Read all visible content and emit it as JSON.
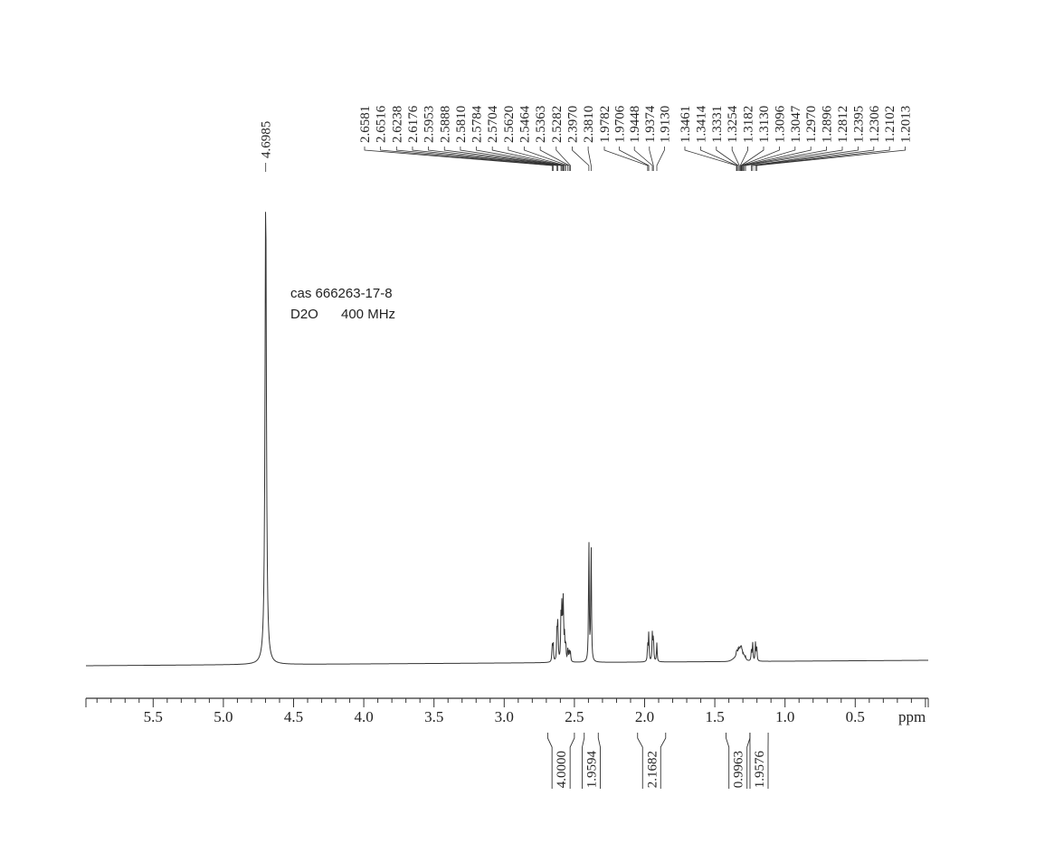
{
  "sample_info": {
    "line1": "cas 666263-17-8",
    "line2_solvent": "D2O",
    "line2_freq": "400 MHz"
  },
  "chart_data": {
    "type": "line",
    "title": "",
    "xlabel": "ppm",
    "ylabel": "",
    "xlim": [
      6.0,
      -0.02
    ],
    "x_reversed": true,
    "x_ticks": [
      5.5,
      5.0,
      4.5,
      4.0,
      3.5,
      3.0,
      2.5,
      2.0,
      1.5,
      1.0,
      0.5
    ],
    "x_tick_labels": [
      "5.5",
      "5.0",
      "4.5",
      "4.0",
      "3.5",
      "3.0",
      "2.5",
      "2.0",
      "1.5",
      "1.0",
      "0.5"
    ],
    "series": [
      {
        "peaks": [
          {
            "ppm": 4.6985,
            "height": 1.0
          },
          {
            "ppm": 2.6581,
            "height": 0.035
          },
          {
            "ppm": 2.6516,
            "height": 0.04
          },
          {
            "ppm": 2.6238,
            "height": 0.075
          },
          {
            "ppm": 2.6176,
            "height": 0.08
          },
          {
            "ppm": 2.5953,
            "height": 0.095
          },
          {
            "ppm": 2.5888,
            "height": 0.11
          },
          {
            "ppm": 2.581,
            "height": 0.085
          },
          {
            "ppm": 2.5784,
            "height": 0.07
          },
          {
            "ppm": 2.5704,
            "height": 0.05
          },
          {
            "ppm": 2.562,
            "height": 0.04
          },
          {
            "ppm": 2.5464,
            "height": 0.03
          },
          {
            "ppm": 2.5363,
            "height": 0.025
          },
          {
            "ppm": 2.5282,
            "height": 0.02
          },
          {
            "ppm": 2.397,
            "height": 0.265
          },
          {
            "ppm": 2.381,
            "height": 0.26
          },
          {
            "ppm": 1.9782,
            "height": 0.035
          },
          {
            "ppm": 1.9706,
            "height": 0.06
          },
          {
            "ppm": 1.9448,
            "height": 0.06
          },
          {
            "ppm": 1.9374,
            "height": 0.055
          },
          {
            "ppm": 1.913,
            "height": 0.04
          },
          {
            "ppm": 1.3461,
            "height": 0.008
          },
          {
            "ppm": 1.3414,
            "height": 0.01
          },
          {
            "ppm": 1.3331,
            "height": 0.014
          },
          {
            "ppm": 1.3254,
            "height": 0.016
          },
          {
            "ppm": 1.3182,
            "height": 0.015
          },
          {
            "ppm": 1.313,
            "height": 0.013
          },
          {
            "ppm": 1.3096,
            "height": 0.012
          },
          {
            "ppm": 1.3047,
            "height": 0.01
          },
          {
            "ppm": 1.297,
            "height": 0.008
          },
          {
            "ppm": 1.2896,
            "height": 0.007
          },
          {
            "ppm": 1.2812,
            "height": 0.006
          },
          {
            "ppm": 1.2395,
            "height": 0.022
          },
          {
            "ppm": 1.2306,
            "height": 0.04
          },
          {
            "ppm": 1.2102,
            "height": 0.04
          },
          {
            "ppm": 1.2013,
            "height": 0.028
          }
        ]
      }
    ],
    "peak_labels": {
      "single": [
        "4.6985"
      ],
      "group_a": [
        "2.6581",
        "2.6516",
        "2.6238",
        "2.6176",
        "2.5953",
        "2.5888",
        "2.5810",
        "2.5784",
        "2.5704",
        "2.5620",
        "2.5464",
        "2.5363",
        "2.5282",
        "2.3970",
        "2.3810"
      ],
      "group_b": [
        "1.9782",
        "1.9706",
        "1.9448",
        "1.9374",
        "1.9130"
      ],
      "group_c": [
        "1.3461",
        "1.3414",
        "1.3331",
        "1.3254",
        "1.3182",
        "1.3130",
        "1.3096",
        "1.3047",
        "1.2970",
        "1.2896",
        "1.2812",
        "1.2395",
        "1.2306",
        "1.2102",
        "1.2013"
      ]
    },
    "integrals": [
      {
        "label": "4.0000",
        "from_ppm": 2.69,
        "to_ppm": 2.5
      },
      {
        "label": "1.9594",
        "from_ppm": 2.43,
        "to_ppm": 2.33
      },
      {
        "label": "2.1682",
        "from_ppm": 2.05,
        "to_ppm": 1.85
      },
      {
        "label": "0.9963",
        "from_ppm": 1.42,
        "to_ppm": 1.25
      },
      {
        "label": "1.9576",
        "from_ppm": 1.25,
        "to_ppm": 1.12
      }
    ]
  }
}
